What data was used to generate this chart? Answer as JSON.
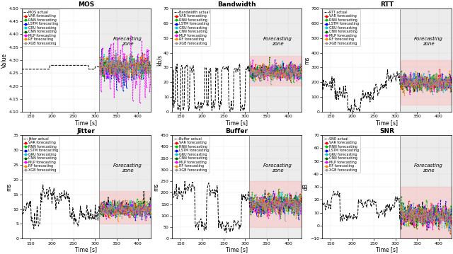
{
  "panels": [
    {
      "title": "MOS",
      "ylabel": "Value",
      "xlabel": "Time [s]",
      "actual_label": "MOS actual",
      "xlim": [
        130,
        430
      ],
      "ylim": [
        4.1,
        4.5
      ],
      "yticks": [
        4.1,
        4.15,
        4.2,
        4.25,
        4.3,
        4.35,
        4.4,
        4.45
      ],
      "forecast_start": 310,
      "forecast_mean": 4.275,
      "forecast_spread": 0.03,
      "noise_scale": 0.025,
      "shading": false,
      "shading_wide": false
    },
    {
      "title": "Bandwidth",
      "ylabel": "kb/s",
      "xlabel": "Time [s]",
      "actual_label": "Bandwidth actual",
      "xlim": [
        130,
        430
      ],
      "ylim": [
        0,
        70
      ],
      "yticks": [
        0,
        10,
        20,
        30,
        40,
        50,
        60,
        70
      ],
      "forecast_start": 310,
      "forecast_mean": 27,
      "forecast_spread": 4,
      "noise_scale": 4,
      "shading": true,
      "shading_wide": false,
      "shading_lo": 18,
      "shading_hi": 38
    },
    {
      "title": "RTT",
      "ylabel": "ms",
      "xlabel": "Time [s]",
      "actual_label": "RTT actual",
      "xlim": [
        130,
        430
      ],
      "ylim": [
        0,
        700
      ],
      "yticks": [
        0,
        100,
        200,
        300,
        400,
        500,
        600,
        700
      ],
      "forecast_start": 310,
      "forecast_mean": 200,
      "forecast_spread": 50,
      "noise_scale": 40,
      "shading": true,
      "shading_wide": true,
      "shading_lo": 50,
      "shading_hi": 350
    },
    {
      "title": "Jitter",
      "ylabel": "ms",
      "xlabel": "Time [s]",
      "actual_label": "Jitter actual",
      "xlim": [
        130,
        430
      ],
      "ylim": [
        0,
        35
      ],
      "yticks": [
        0,
        5,
        10,
        15,
        20,
        25,
        30,
        35
      ],
      "forecast_start": 310,
      "forecast_mean": 10,
      "forecast_spread": 3,
      "noise_scale": 2,
      "shading": true,
      "shading_wide": false,
      "shading_lo": 5,
      "shading_hi": 16
    },
    {
      "title": "Buffer",
      "ylabel": "ms",
      "xlabel": "Time [s]",
      "actual_label": "Buffer actual",
      "xlim": [
        130,
        430
      ],
      "ylim": [
        0,
        450
      ],
      "yticks": [
        0,
        50,
        100,
        150,
        200,
        250,
        300,
        350,
        400,
        450
      ],
      "forecast_start": 310,
      "forecast_mean": 150,
      "forecast_spread": 40,
      "noise_scale": 30,
      "shading": true,
      "shading_wide": true,
      "shading_lo": 50,
      "shading_hi": 250
    },
    {
      "title": "SNR",
      "ylabel": "dB",
      "xlabel": "Time [s]",
      "actual_label": "SNR actual",
      "xlim": [
        130,
        430
      ],
      "ylim": [
        -10,
        70
      ],
      "yticks": [
        -10,
        0,
        10,
        20,
        30,
        40,
        50,
        60,
        70
      ],
      "forecast_start": 310,
      "forecast_mean": 8,
      "forecast_spread": 8,
      "noise_scale": 6,
      "shading": true,
      "shading_wide": true,
      "shading_lo": -10,
      "shading_hi": 30
    }
  ],
  "model_colors": {
    "VAR": "#FF0000",
    "RNN": "#00BB00",
    "LSTM": "#0000FF",
    "GRU": "#00CCCC",
    "CNN": "#006600",
    "MLP": "#FF00FF",
    "RF": "#FF8800",
    "XGB": "#999999"
  },
  "model_names": [
    "VAR",
    "RNN",
    "LSTM",
    "GRU",
    "CNN",
    "MLP",
    "RF",
    "XGB"
  ],
  "forecast_zone_color": "#DDDDDD",
  "forecast_zone_alpha": 0.55,
  "shading_color": "#FFBBBB",
  "shading_alpha": 0.45,
  "figure_bg": "#FFFFFF"
}
